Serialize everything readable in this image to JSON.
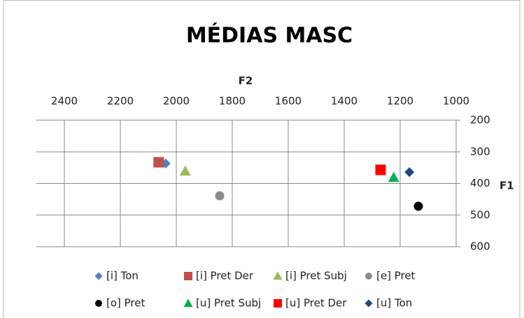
{
  "chart_data": {
    "type": "scatter",
    "title": "MÉDIAS MASC",
    "x_label": "F2",
    "y_label": "F1",
    "xlim": [
      2500,
      1000
    ],
    "xticks": [
      2400,
      2200,
      2000,
      1800,
      1600,
      1400,
      1200,
      1000
    ],
    "ylim": [
      600,
      200
    ],
    "yticks": [
      200,
      300,
      400,
      500,
      600
    ],
    "grid": true,
    "series": [
      {
        "name": "[i] Ton",
        "color": "#4f81bd",
        "marker": "diamond",
        "x": [
          2038
        ],
        "values": [
          337
        ]
      },
      {
        "name": "[i] Pret Der",
        "color": "#c0504d",
        "marker": "square",
        "x": [
          2063
        ],
        "values": [
          333
        ]
      },
      {
        "name": "[i] Pret Subj",
        "color": "#9bbb59",
        "marker": "triangle",
        "x": [
          1968
        ],
        "values": [
          361
        ]
      },
      {
        "name": "[e] Pret",
        "color": "#8c8c8c",
        "marker": "circle",
        "x": [
          1845
        ],
        "values": [
          439
        ]
      },
      {
        "name": "[o] Pret",
        "color": "#000000",
        "marker": "circle",
        "x": [
          1135
        ],
        "values": [
          472
        ]
      },
      {
        "name": "[u] Pret Subj",
        "color": "#00b050",
        "marker": "triangle",
        "x": [
          1223
        ],
        "values": [
          381
        ]
      },
      {
        "name": "[u] Pret Der",
        "color": "#ff0000",
        "marker": "square",
        "x": [
          1270
        ],
        "values": [
          357
        ]
      },
      {
        "name": "[u] Ton",
        "color": "#1f497d",
        "marker": "diamond",
        "x": [
          1167
        ],
        "values": [
          364
        ]
      }
    ]
  }
}
